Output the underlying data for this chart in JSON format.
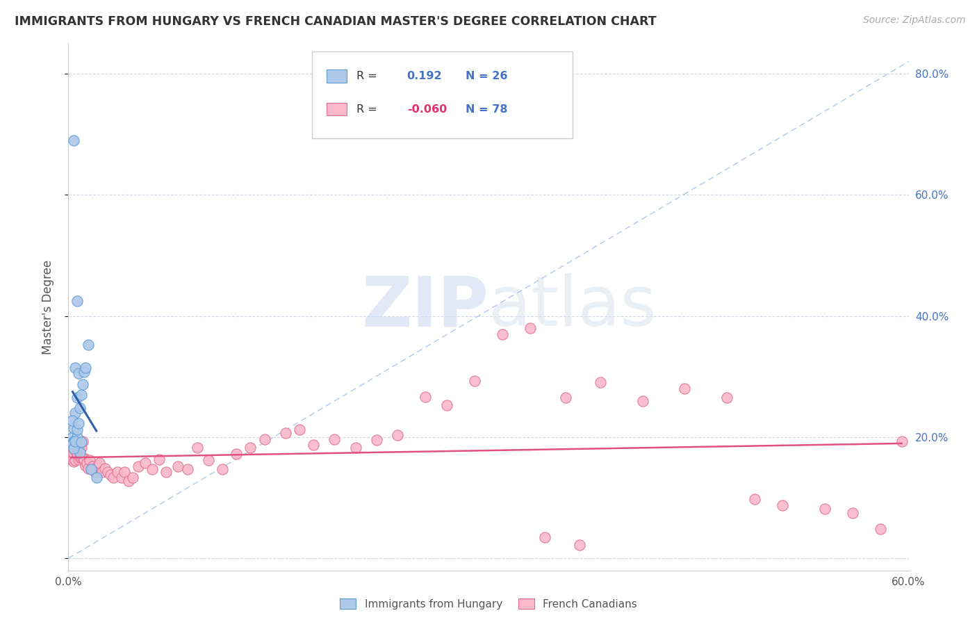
{
  "title": "IMMIGRANTS FROM HUNGARY VS FRENCH CANADIAN MASTER'S DEGREE CORRELATION CHART",
  "source": "Source: ZipAtlas.com",
  "ylabel": "Master's Degree",
  "xlim": [
    0.0,
    0.6
  ],
  "ylim": [
    -0.02,
    0.85
  ],
  "r_hungary": 0.192,
  "n_hungary": 26,
  "r_french": -0.06,
  "n_french": 78,
  "legend_label1": "Immigrants from Hungary",
  "legend_label2": "French Canadians",
  "watermark_zip": "ZIP",
  "watermark_atlas": "atlas",
  "hungary_fill": "#adc8e8",
  "hungary_edge": "#5b9bd5",
  "french_fill": "#f9b8cb",
  "french_edge": "#e07090",
  "trend_hungary_color": "#2e5faa",
  "trend_french_color": "#e05080",
  "diag_color": "#b0c8e8",
  "scatter_hungary_x": [
    0.008,
    0.004,
    0.003,
    0.005,
    0.006,
    0.007,
    0.005,
    0.004,
    0.003,
    0.004,
    0.003,
    0.004,
    0.006,
    0.005,
    0.006,
    0.007,
    0.008,
    0.009,
    0.011,
    0.01,
    0.012,
    0.014,
    0.006,
    0.009,
    0.016,
    0.02
  ],
  "scatter_hungary_y": [
    0.175,
    0.69,
    0.2,
    0.315,
    0.265,
    0.305,
    0.24,
    0.215,
    0.228,
    0.193,
    0.188,
    0.182,
    0.2,
    0.193,
    0.213,
    0.223,
    0.248,
    0.27,
    0.308,
    0.287,
    0.315,
    0.353,
    0.425,
    0.192,
    0.147,
    0.133
  ],
  "scatter_french_x": [
    0.002,
    0.003,
    0.003,
    0.004,
    0.004,
    0.005,
    0.005,
    0.006,
    0.006,
    0.007,
    0.007,
    0.008,
    0.008,
    0.009,
    0.009,
    0.01,
    0.01,
    0.011,
    0.011,
    0.012,
    0.013,
    0.014,
    0.015,
    0.016,
    0.017,
    0.018,
    0.019,
    0.02,
    0.021,
    0.022,
    0.024,
    0.026,
    0.028,
    0.03,
    0.032,
    0.035,
    0.038,
    0.04,
    0.043,
    0.046,
    0.05,
    0.055,
    0.06,
    0.065,
    0.07,
    0.078,
    0.085,
    0.092,
    0.1,
    0.11,
    0.12,
    0.13,
    0.14,
    0.155,
    0.165,
    0.175,
    0.19,
    0.205,
    0.22,
    0.235,
    0.255,
    0.27,
    0.29,
    0.31,
    0.33,
    0.355,
    0.38,
    0.41,
    0.44,
    0.47,
    0.49,
    0.51,
    0.54,
    0.56,
    0.58,
    0.595,
    0.34,
    0.365
  ],
  "scatter_french_y": [
    0.183,
    0.172,
    0.162,
    0.173,
    0.16,
    0.178,
    0.162,
    0.193,
    0.173,
    0.178,
    0.163,
    0.178,
    0.167,
    0.183,
    0.165,
    0.193,
    0.165,
    0.165,
    0.163,
    0.153,
    0.158,
    0.148,
    0.162,
    0.147,
    0.152,
    0.147,
    0.143,
    0.148,
    0.153,
    0.158,
    0.143,
    0.148,
    0.142,
    0.138,
    0.133,
    0.143,
    0.133,
    0.142,
    0.128,
    0.133,
    0.152,
    0.157,
    0.147,
    0.163,
    0.142,
    0.152,
    0.147,
    0.183,
    0.162,
    0.147,
    0.172,
    0.183,
    0.197,
    0.207,
    0.213,
    0.187,
    0.197,
    0.183,
    0.195,
    0.203,
    0.267,
    0.253,
    0.293,
    0.37,
    0.38,
    0.265,
    0.29,
    0.26,
    0.28,
    0.265,
    0.098,
    0.088,
    0.082,
    0.075,
    0.048,
    0.193,
    0.035,
    0.022
  ]
}
